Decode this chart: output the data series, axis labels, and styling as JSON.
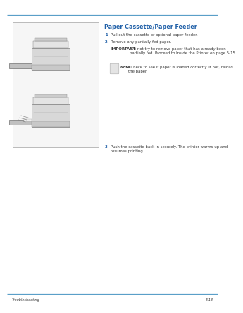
{
  "bg_color": "#ffffff",
  "header_line_color": "#5a9fc8",
  "footer_line_color": "#5a9fc8",
  "title": "Paper Cassette/Paper Feeder",
  "title_color": "#2060a8",
  "title_fontsize": 5.8,
  "step1_num": "1",
  "step1_text": "Pull out the cassette or optional paper feeder.",
  "step2_num": "2",
  "step2_text": "Remove any partially fed paper.",
  "important_label": "IMPORTANT",
  "important_body": " Do not try to remove paper that has already been\npartially fed. Proceed to Inside the Printer on page 5-15.",
  "note_label": "Note",
  "note_body": "  Check to see if paper is loaded correctly. If not, reload\nthe paper.",
  "step3_num": "3",
  "step3_text": "Push the cassette back in securely. The printer warms up and\nresumes printing.",
  "footer_left": "Troubleshooting",
  "footer_right": "5-13",
  "num_color": "#2060a8",
  "text_color": "#3a3a3a",
  "body_fontsize": 3.9,
  "footer_fontsize": 3.6
}
